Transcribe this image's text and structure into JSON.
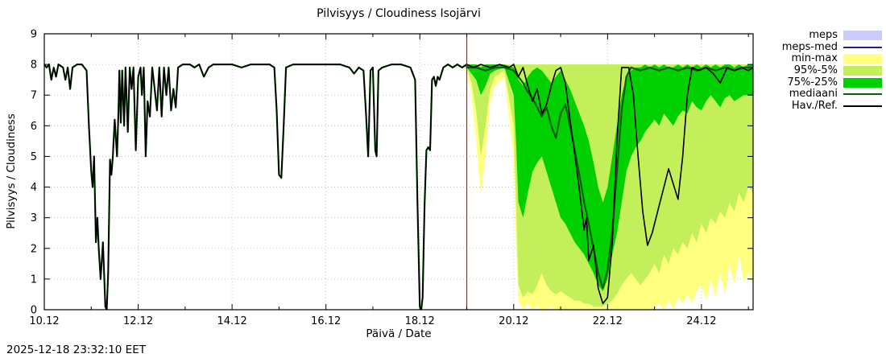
{
  "timestamp": "2025-12-18 23:32:10 EET",
  "chart_data": {
    "type": "line",
    "title": "Pilvisyys / Cloudiness Isojärvi",
    "xlabel": "Päivä / Date",
    "ylabel": "Pilvisyys / Cloudiness",
    "xlim": [
      10,
      25.1
    ],
    "ylim": [
      0,
      9
    ],
    "grid": true,
    "x_ticks": [
      {
        "v": 10,
        "label": "10.12"
      },
      {
        "v": 12,
        "label": "12.12"
      },
      {
        "v": 14,
        "label": "14.12"
      },
      {
        "v": 16,
        "label": "16.12"
      },
      {
        "v": 18,
        "label": "18.12"
      },
      {
        "v": 20,
        "label": "20.12"
      },
      {
        "v": 22,
        "label": "22.12"
      },
      {
        "v": 24,
        "label": "24.12"
      }
    ],
    "x_minor_ticks": [
      11,
      13,
      15,
      17,
      19,
      21,
      23,
      25
    ],
    "y_ticks": [
      {
        "v": 0,
        "label": "0"
      },
      {
        "v": 1,
        "label": "1"
      },
      {
        "v": 2,
        "label": "2"
      },
      {
        "v": 3,
        "label": "3"
      },
      {
        "v": 4,
        "label": "4"
      },
      {
        "v": 5,
        "label": "5"
      },
      {
        "v": 6,
        "label": "6"
      },
      {
        "v": 7,
        "label": "7"
      },
      {
        "v": 8,
        "label": "8"
      },
      {
        "v": 9,
        "label": "9"
      }
    ],
    "now_line": {
      "x": 19.0,
      "color": "#ff0000"
    },
    "legend": [
      {
        "label": "meps",
        "type": "band",
        "color": "#ccccfa"
      },
      {
        "label": "meps-med",
        "type": "line",
        "color": "#202090"
      },
      {
        "label": "min-max",
        "type": "band",
        "color": "#ffff80"
      },
      {
        "label": "95%-5%",
        "type": "band",
        "color": "#c3f05a"
      },
      {
        "label": "75%-25%",
        "type": "band",
        "color": "#00d000"
      },
      {
        "label": "mediaani",
        "type": "line",
        "color": "#0b5e0b"
      },
      {
        "label": "Hav./Ref.",
        "type": "line",
        "color": "#000000"
      }
    ],
    "observation": [
      [
        10.0,
        8.0
      ],
      [
        10.05,
        7.9
      ],
      [
        10.1,
        8.0
      ],
      [
        10.15,
        7.5
      ],
      [
        10.2,
        7.9
      ],
      [
        10.25,
        7.6
      ],
      [
        10.3,
        8.0
      ],
      [
        10.4,
        7.9
      ],
      [
        10.45,
        7.5
      ],
      [
        10.5,
        7.9
      ],
      [
        10.55,
        7.2
      ],
      [
        10.6,
        7.9
      ],
      [
        10.7,
        8.0
      ],
      [
        10.8,
        8.0
      ],
      [
        10.9,
        7.8
      ],
      [
        10.95,
        6.0
      ],
      [
        11.0,
        4.5
      ],
      [
        11.03,
        4.0
      ],
      [
        11.06,
        5.0
      ],
      [
        11.1,
        2.2
      ],
      [
        11.13,
        3.0
      ],
      [
        11.16,
        2.0
      ],
      [
        11.2,
        1.0
      ],
      [
        11.25,
        2.2
      ],
      [
        11.3,
        0.1
      ],
      [
        11.33,
        0.0
      ],
      [
        11.36,
        1.2
      ],
      [
        11.4,
        4.9
      ],
      [
        11.43,
        4.4
      ],
      [
        11.46,
        5.0
      ],
      [
        11.5,
        6.2
      ],
      [
        11.55,
        5.0
      ],
      [
        11.58,
        6.5
      ],
      [
        11.6,
        7.8
      ],
      [
        11.63,
        6.1
      ],
      [
        11.66,
        7.8
      ],
      [
        11.7,
        6.0
      ],
      [
        11.73,
        7.9
      ],
      [
        11.78,
        5.8
      ],
      [
        11.82,
        7.9
      ],
      [
        11.86,
        7.2
      ],
      [
        11.9,
        7.9
      ],
      [
        11.95,
        5.2
      ],
      [
        12.0,
        7.6
      ],
      [
        12.05,
        7.9
      ],
      [
        12.08,
        7.0
      ],
      [
        12.12,
        7.9
      ],
      [
        12.16,
        5.0
      ],
      [
        12.2,
        6.8
      ],
      [
        12.25,
        6.3
      ],
      [
        12.3,
        7.9
      ],
      [
        12.35,
        7.2
      ],
      [
        12.4,
        6.5
      ],
      [
        12.45,
        7.9
      ],
      [
        12.5,
        6.3
      ],
      [
        12.55,
        7.9
      ],
      [
        12.6,
        7.0
      ],
      [
        12.65,
        7.9
      ],
      [
        12.7,
        6.5
      ],
      [
        12.75,
        7.2
      ],
      [
        12.8,
        6.6
      ],
      [
        12.85,
        7.9
      ],
      [
        12.95,
        8.0
      ],
      [
        13.1,
        8.0
      ],
      [
        13.2,
        7.9
      ],
      [
        13.3,
        8.0
      ],
      [
        13.4,
        7.6
      ],
      [
        13.5,
        7.9
      ],
      [
        13.6,
        8.0
      ],
      [
        13.8,
        8.0
      ],
      [
        14.0,
        8.0
      ],
      [
        14.2,
        7.9
      ],
      [
        14.4,
        8.0
      ],
      [
        14.6,
        8.0
      ],
      [
        14.8,
        8.0
      ],
      [
        14.9,
        7.9
      ],
      [
        14.95,
        6.5
      ],
      [
        15.0,
        4.4
      ],
      [
        15.05,
        4.3
      ],
      [
        15.1,
        6.0
      ],
      [
        15.15,
        7.9
      ],
      [
        15.3,
        8.0
      ],
      [
        15.5,
        8.0
      ],
      [
        15.7,
        8.0
      ],
      [
        15.9,
        8.0
      ],
      [
        16.1,
        8.0
      ],
      [
        16.3,
        8.0
      ],
      [
        16.5,
        7.9
      ],
      [
        16.6,
        7.7
      ],
      [
        16.7,
        7.9
      ],
      [
        16.8,
        7.8
      ],
      [
        16.85,
        6.5
      ],
      [
        16.9,
        5.0
      ],
      [
        16.95,
        7.8
      ],
      [
        17.0,
        7.9
      ],
      [
        17.05,
        5.2
      ],
      [
        17.08,
        5.0
      ],
      [
        17.12,
        7.8
      ],
      [
        17.2,
        7.9
      ],
      [
        17.4,
        8.0
      ],
      [
        17.6,
        8.0
      ],
      [
        17.8,
        7.9
      ],
      [
        17.9,
        7.5
      ],
      [
        17.95,
        3.5
      ],
      [
        18.0,
        0.1
      ],
      [
        18.03,
        0.0
      ],
      [
        18.06,
        0.4
      ],
      [
        18.1,
        3.4
      ],
      [
        18.14,
        5.2
      ],
      [
        18.18,
        5.3
      ],
      [
        18.22,
        5.2
      ],
      [
        18.26,
        7.5
      ],
      [
        18.3,
        7.6
      ],
      [
        18.34,
        7.3
      ],
      [
        18.38,
        7.6
      ],
      [
        18.42,
        7.5
      ],
      [
        18.5,
        7.9
      ],
      [
        18.6,
        8.0
      ],
      [
        18.7,
        7.9
      ],
      [
        18.8,
        8.0
      ],
      [
        18.9,
        7.9
      ],
      [
        19.0,
        8.0
      ]
    ],
    "forecast": {
      "x": [
        19.0,
        19.1,
        19.2,
        19.3,
        19.4,
        19.5,
        19.6,
        19.8,
        20.0,
        20.05,
        20.1,
        20.2,
        20.3,
        20.4,
        20.5,
        20.6,
        20.7,
        20.8,
        20.9,
        21.0,
        21.1,
        21.2,
        21.3,
        21.4,
        21.5,
        21.6,
        21.7,
        21.8,
        21.9,
        22.0,
        22.1,
        22.2,
        22.3,
        22.4,
        22.5,
        22.6,
        22.7,
        22.8,
        22.9,
        23.0,
        23.1,
        23.2,
        23.3,
        23.4,
        23.5,
        23.6,
        23.7,
        23.8,
        23.9,
        24.0,
        24.1,
        24.2,
        24.3,
        24.4,
        24.5,
        24.6,
        24.7,
        24.8,
        24.9,
        25.0,
        25.1
      ],
      "min": [
        7.9,
        7.0,
        5.5,
        3.7,
        5.0,
        6.8,
        7.3,
        7.6,
        5.0,
        2.0,
        0.3,
        0.0,
        0.2,
        0.0,
        0.1,
        0.0,
        0.0,
        0.1,
        0.0,
        0.0,
        0.0,
        0.0,
        0.0,
        0.0,
        0.0,
        0.0,
        0.0,
        0.0,
        0.0,
        0.0,
        0.0,
        0.0,
        0.0,
        0.0,
        0.0,
        0.0,
        0.0,
        0.0,
        0.0,
        0.0,
        0.2,
        0.0,
        0.3,
        0.0,
        0.4,
        0.2,
        0.5,
        0.2,
        0.6,
        0.8,
        0.3,
        1.0,
        0.4,
        1.2,
        0.5,
        1.5,
        0.8,
        1.8,
        0.9,
        1.2,
        0.8
      ],
      "max": [
        8.0,
        8.0,
        8.0,
        8.0,
        8.0,
        8.0,
        8.0,
        8.0,
        8.0,
        8.0,
        8.0,
        8.0,
        8.0,
        8.0,
        8.0,
        8.0,
        8.0,
        8.0,
        8.0,
        8.0,
        8.0,
        8.0,
        8.0,
        8.0,
        8.0,
        8.0,
        8.0,
        8.0,
        8.0,
        8.0,
        8.0,
        8.0,
        8.0,
        8.0,
        8.0,
        8.0,
        8.0,
        8.0,
        8.0,
        8.0,
        8.0,
        8.0,
        8.0,
        8.0,
        8.0,
        8.0,
        8.0,
        8.0,
        8.0,
        8.0,
        8.0,
        8.0,
        8.0,
        8.0,
        8.0,
        8.0,
        8.0,
        8.0,
        8.0,
        8.0,
        8.0
      ],
      "p5": [
        7.9,
        7.4,
        6.5,
        5.0,
        6.0,
        7.2,
        7.6,
        7.8,
        6.0,
        3.5,
        0.8,
        0.4,
        0.6,
        0.5,
        0.8,
        1.2,
        0.8,
        0.6,
        0.5,
        0.6,
        0.5,
        0.4,
        0.3,
        0.3,
        0.2,
        0.2,
        0.1,
        0.1,
        0.1,
        0.2,
        0.3,
        0.5,
        0.8,
        1.0,
        1.2,
        1.0,
        0.8,
        1.0,
        1.2,
        1.5,
        1.2,
        1.8,
        1.5,
        2.0,
        1.8,
        2.2,
        2.0,
        2.5,
        2.2,
        2.8,
        2.5,
        3.0,
        2.8,
        3.2,
        3.0,
        3.5,
        3.2,
        3.8,
        3.5,
        4.0,
        3.8
      ],
      "p95": [
        8.0,
        8.0,
        8.0,
        8.0,
        8.0,
        8.0,
        8.0,
        8.0,
        8.0,
        8.0,
        8.0,
        8.0,
        8.0,
        8.0,
        8.0,
        8.0,
        8.0,
        8.0,
        8.0,
        8.0,
        8.0,
        8.0,
        8.0,
        8.0,
        8.0,
        8.0,
        8.0,
        8.0,
        8.0,
        8.0,
        8.0,
        8.0,
        8.0,
        8.0,
        8.0,
        8.0,
        8.0,
        8.0,
        8.0,
        8.0,
        8.0,
        8.0,
        8.0,
        8.0,
        8.0,
        8.0,
        8.0,
        8.0,
        8.0,
        8.0,
        8.0,
        8.0,
        8.0,
        8.0,
        8.0,
        8.0,
        8.0,
        8.0,
        8.0,
        8.0,
        8.0
      ],
      "p25": [
        7.9,
        7.7,
        7.5,
        7.0,
        7.3,
        7.7,
        7.8,
        7.9,
        7.0,
        5.5,
        3.5,
        3.0,
        3.8,
        4.5,
        4.8,
        5.0,
        4.5,
        4.0,
        3.5,
        3.0,
        2.8,
        2.5,
        2.2,
        2.0,
        1.8,
        1.5,
        1.2,
        0.8,
        0.6,
        1.0,
        1.8,
        2.5,
        3.5,
        4.5,
        5.0,
        5.3,
        5.5,
        5.8,
        6.0,
        6.2,
        6.0,
        6.4,
        6.2,
        6.0,
        6.3,
        6.5,
        6.4,
        6.8,
        6.6,
        6.5,
        6.8,
        7.0,
        6.8,
        6.6,
        6.9,
        7.0,
        6.8,
        6.9,
        7.0,
        7.0,
        7.0
      ],
      "p75": [
        8.0,
        8.0,
        8.0,
        7.9,
        8.0,
        8.0,
        8.0,
        8.0,
        7.9,
        7.8,
        7.5,
        7.3,
        7.6,
        7.8,
        7.9,
        7.8,
        7.6,
        7.4,
        7.6,
        7.8,
        7.5,
        7.2,
        6.8,
        6.4,
        6.0,
        5.5,
        4.8,
        4.0,
        3.5,
        4.0,
        5.0,
        6.0,
        7.0,
        7.6,
        7.8,
        7.9,
        7.9,
        8.0,
        7.9,
        8.0,
        7.9,
        8.0,
        7.9,
        7.9,
        8.0,
        7.9,
        8.0,
        7.9,
        8.0,
        7.9,
        8.0,
        7.9,
        8.0,
        7.9,
        8.0,
        8.0,
        7.9,
        8.0,
        7.9,
        8.0,
        8.0
      ]
    },
    "bands": [
      {
        "name": "min-max",
        "color": "#ffff80",
        "lower": "min",
        "upper": "max"
      },
      {
        "name": "95%-5%",
        "color": "#c3f05a",
        "lower": "p5",
        "upper": "p95"
      },
      {
        "name": "75%-25%",
        "color": "#00d000",
        "lower": "p25",
        "upper": "p75"
      }
    ],
    "series": [
      {
        "name": "meps-med",
        "color": "#202090",
        "width": 1.5,
        "points": []
      },
      {
        "name": "mediaani",
        "color": "#0b5e0b",
        "width": 2.2,
        "pre": "observation",
        "points": [
          [
            19.0,
            7.9
          ],
          [
            19.2,
            7.9
          ],
          [
            19.4,
            7.8
          ],
          [
            19.6,
            7.9
          ],
          [
            19.8,
            7.9
          ],
          [
            20.0,
            7.8
          ],
          [
            20.1,
            7.6
          ],
          [
            20.2,
            7.4
          ],
          [
            20.3,
            7.1
          ],
          [
            20.4,
            6.9
          ],
          [
            20.5,
            6.6
          ],
          [
            20.6,
            6.3
          ],
          [
            20.7,
            6.6
          ],
          [
            20.8,
            6.0
          ],
          [
            20.9,
            5.6
          ],
          [
            21.0,
            6.4
          ],
          [
            21.1,
            6.7
          ],
          [
            21.2,
            6.0
          ],
          [
            21.3,
            5.2
          ],
          [
            21.4,
            4.4
          ],
          [
            21.5,
            3.5
          ],
          [
            21.6,
            2.8
          ],
          [
            21.7,
            2.0
          ],
          [
            21.8,
            1.2
          ],
          [
            21.9,
            0.7
          ],
          [
            22.0,
            1.3
          ],
          [
            22.1,
            2.6
          ],
          [
            22.2,
            4.5
          ],
          [
            22.3,
            6.5
          ],
          [
            22.4,
            7.6
          ],
          [
            22.5,
            7.9
          ],
          [
            22.7,
            7.8
          ],
          [
            22.9,
            7.9
          ],
          [
            23.1,
            7.8
          ],
          [
            23.3,
            7.9
          ],
          [
            23.5,
            7.8
          ],
          [
            23.7,
            7.9
          ],
          [
            23.9,
            7.8
          ],
          [
            24.1,
            7.9
          ],
          [
            24.3,
            7.8
          ],
          [
            24.5,
            7.9
          ],
          [
            24.7,
            7.8
          ],
          [
            24.9,
            7.9
          ],
          [
            25.1,
            7.9
          ]
        ]
      },
      {
        "name": "hav-ref",
        "color": "#000000",
        "width": 1.6,
        "pre": "observation",
        "points": [
          [
            19.0,
            8.0
          ],
          [
            19.15,
            7.9
          ],
          [
            19.3,
            8.0
          ],
          [
            19.5,
            7.9
          ],
          [
            19.7,
            8.0
          ],
          [
            19.9,
            7.9
          ],
          [
            20.0,
            8.0
          ],
          [
            20.1,
            7.6
          ],
          [
            20.2,
            7.9
          ],
          [
            20.3,
            7.3
          ],
          [
            20.4,
            6.8
          ],
          [
            20.5,
            7.2
          ],
          [
            20.6,
            6.4
          ],
          [
            20.7,
            6.7
          ],
          [
            20.8,
            7.3
          ],
          [
            20.9,
            7.8
          ],
          [
            21.0,
            7.9
          ],
          [
            21.1,
            7.4
          ],
          [
            21.2,
            6.2
          ],
          [
            21.3,
            5.1
          ],
          [
            21.4,
            3.9
          ],
          [
            21.5,
            2.6
          ],
          [
            21.55,
            3.0
          ],
          [
            21.6,
            1.6
          ],
          [
            21.7,
            2.1
          ],
          [
            21.8,
            0.7
          ],
          [
            21.9,
            0.2
          ],
          [
            22.0,
            0.4
          ],
          [
            22.1,
            2.2
          ],
          [
            22.2,
            5.5
          ],
          [
            22.3,
            7.9
          ],
          [
            22.45,
            7.9
          ],
          [
            22.55,
            7.0
          ],
          [
            22.65,
            5.0
          ],
          [
            22.75,
            3.2
          ],
          [
            22.85,
            2.1
          ],
          [
            22.95,
            2.5
          ],
          [
            23.1,
            3.4
          ],
          [
            23.2,
            4.0
          ],
          [
            23.3,
            4.6
          ],
          [
            23.4,
            4.1
          ],
          [
            23.5,
            3.6
          ],
          [
            23.6,
            5.0
          ],
          [
            23.7,
            7.0
          ],
          [
            23.8,
            7.9
          ],
          [
            23.95,
            7.8
          ],
          [
            24.1,
            7.9
          ],
          [
            24.25,
            7.7
          ],
          [
            24.4,
            7.4
          ],
          [
            24.55,
            7.9
          ],
          [
            24.7,
            7.8
          ],
          [
            24.85,
            7.9
          ],
          [
            25.0,
            7.8
          ],
          [
            25.1,
            7.9
          ]
        ]
      }
    ]
  }
}
